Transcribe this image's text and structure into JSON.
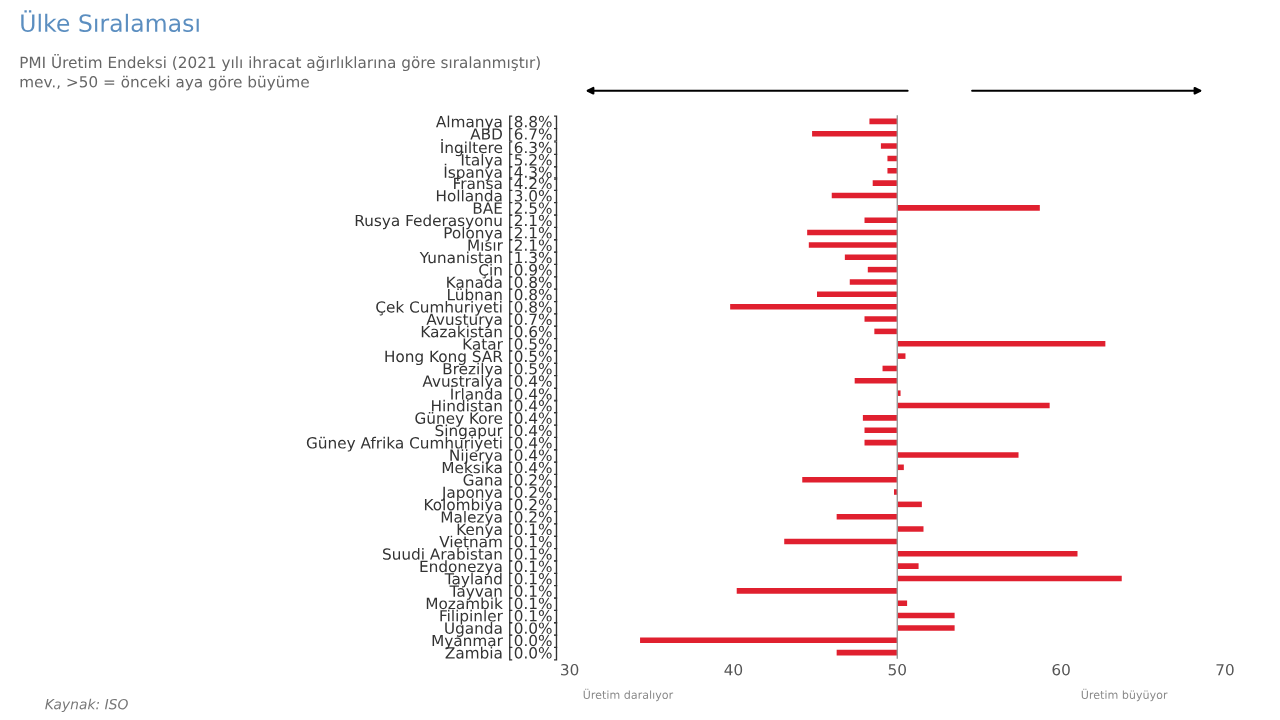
{
  "chart_data": {
    "type": "bar",
    "orientation": "horizontal",
    "title": "Ülke Sıralaması",
    "subtitle": "PMI Üretim Endeksi (2021 yılı ihracat ağırlıklarına göre sıralanmıştır)\nmev., >50 = önceki aya göre büyüme",
    "categories": [
      "Almanya [8.8%]",
      "ABD [6.7%]",
      "İngiltere [6.3%]",
      "İtalya [5.2%]",
      "İspanya [4.3%]",
      "Fransa [4.2%]",
      "Hollanda [3.0%]",
      "BAE [2.5%]",
      "Rusya Federasyonu [2.1%]",
      "Polonya [2.1%]",
      "Mısır [2.1%]",
      "Yunanistan [1.3%]",
      "Çin [0.9%]",
      "Kanada [0.8%]",
      "Lübnan [0.8%]",
      "Çek Cumhuriyeti [0.8%]",
      "Avusturya [0.7%]",
      "Kazakistan [0.6%]",
      "Katar [0.5%]",
      "Hong Kong SAR [0.5%]",
      "Brezilya [0.5%]",
      "Avustralya [0.4%]",
      "İrlanda [0.4%]",
      "Hindistan [0.4%]",
      "Güney Kore [0.4%]",
      "Singapur [0.4%]",
      "Güney Afrika Cumhuriyeti [0.4%]",
      "Nijerya [0.4%]",
      "Meksika [0.4%]",
      "Gana [0.2%]",
      "Japonya [0.2%]",
      "Kolombiya [0.2%]",
      "Malezya [0.2%]",
      "Kenya [0.1%]",
      "Vietnam [0.1%]",
      "Suudi Arabistan [0.1%]",
      "Endonezya [0.1%]",
      "Tayland [0.1%]",
      "Tayvan [0.1%]",
      "Mozambik [0.1%]",
      "Filipinler [0.1%]",
      "Uganda [0.0%]",
      "Myanmar [0.0%]",
      "Zambia [0.0%]"
    ],
    "base": [
      50,
      50,
      50,
      50,
      50,
      50,
      50,
      50,
      50,
      50,
      50,
      50,
      50,
      50,
      50,
      50,
      50,
      50,
      50,
      50,
      50,
      50,
      50,
      50,
      50,
      50,
      50,
      50,
      50,
      50,
      50,
      50,
      50,
      50,
      50,
      50,
      50,
      50,
      50,
      50,
      50,
      50,
      50,
      50
    ],
    "values": [
      -1.7,
      -5.2,
      -1.0,
      -0.6,
      -0.6,
      -1.5,
      -4.0,
      8.7,
      -2.0,
      -5.5,
      -5.4,
      -3.2,
      -1.8,
      -2.9,
      -4.9,
      -10.2,
      -2.0,
      -1.4,
      12.7,
      0.5,
      -0.9,
      -2.6,
      0.2,
      9.3,
      -2.1,
      -2.0,
      -2.0,
      7.4,
      0.4,
      -5.8,
      -0.2,
      1.5,
      -3.7,
      1.6,
      -6.9,
      11.0,
      1.3,
      13.7,
      -9.8,
      0.6,
      3.5,
      3.5,
      -15.7,
      -3.7
    ],
    "color": "#e0202f",
    "xlim": [
      30,
      70
    ],
    "xticks": [
      30,
      40,
      50,
      60,
      70
    ],
    "ref_lines": [
      {
        "axis": "x",
        "value": 50,
        "color": "#999999"
      }
    ],
    "grid": false,
    "legend": false,
    "annotations": [
      "Üretim daralıyor",
      "Üretim büyüyor",
      "Kaynak: ISO"
    ]
  }
}
